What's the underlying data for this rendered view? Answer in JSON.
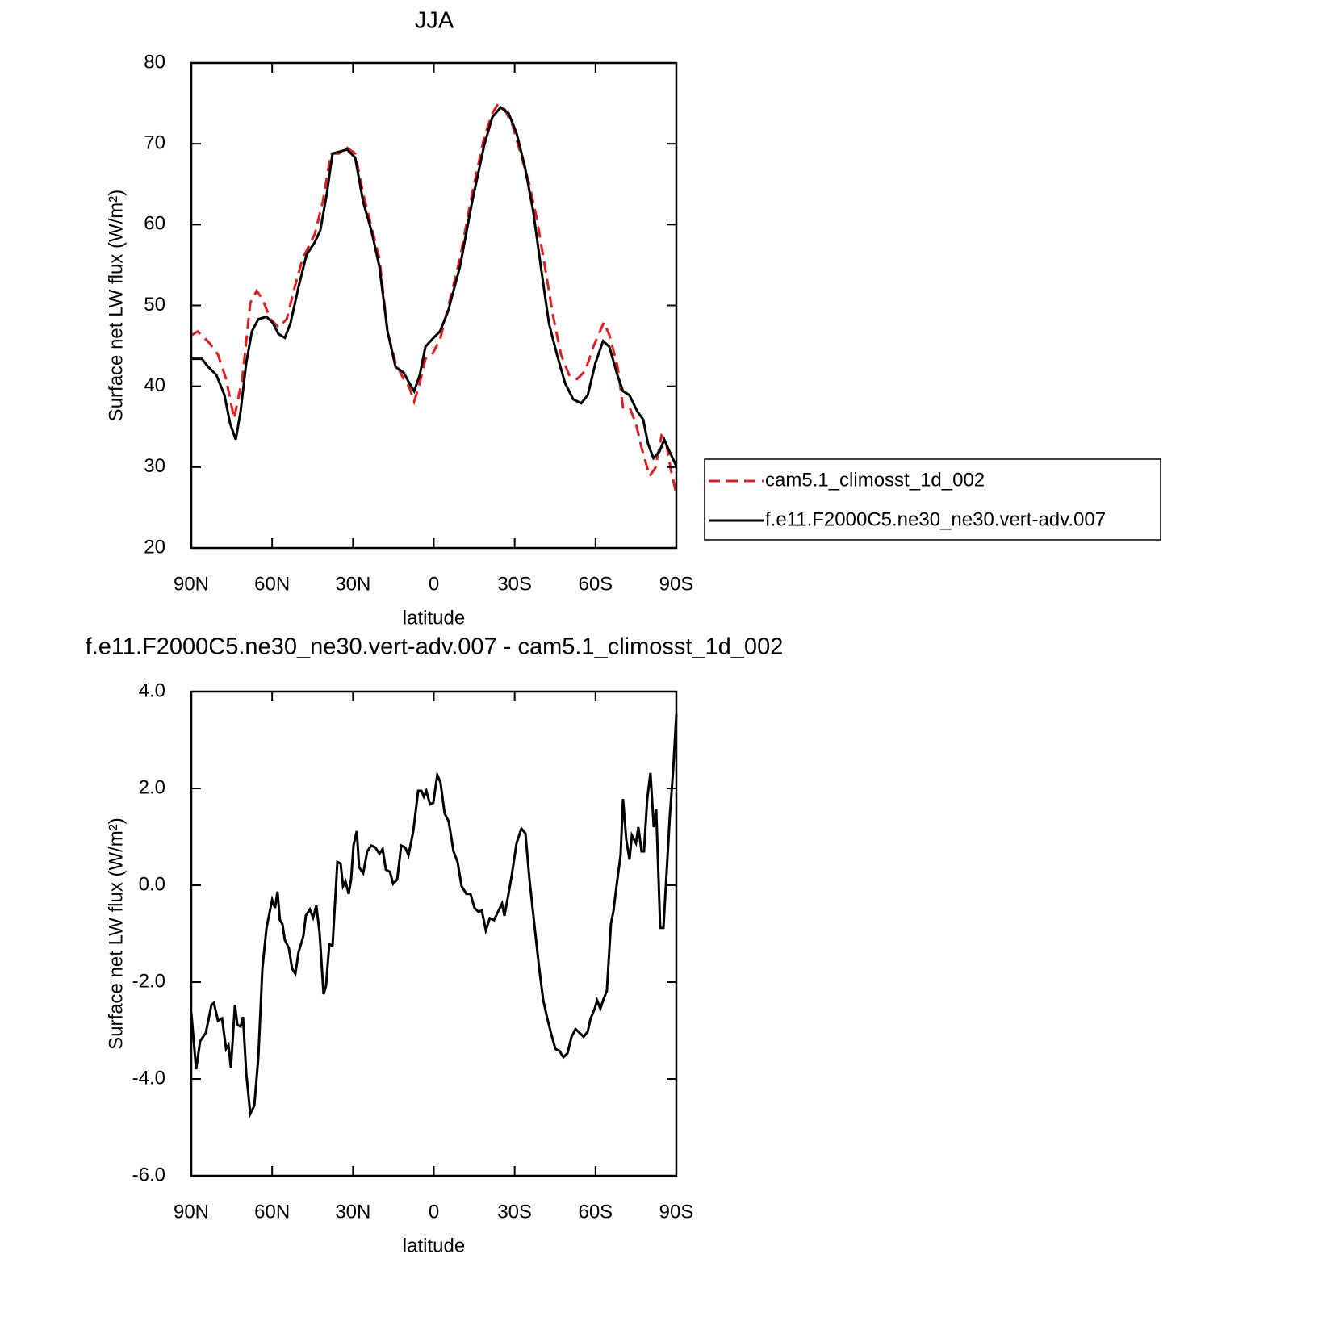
{
  "chart_data": [
    {
      "type": "line",
      "title": "JJA",
      "xlabel": "latitude",
      "ylabel": "Surface net LW flux (W/m²)",
      "xlim": [
        90,
        -90
      ],
      "xticks": [
        {
          "value": 90,
          "label": "90N"
        },
        {
          "value": 60,
          "label": "60N"
        },
        {
          "value": 30,
          "label": "30N"
        },
        0,
        {
          "value": -30,
          "label": "30S"
        },
        {
          "value": -60,
          "label": "60S"
        },
        {
          "value": -90,
          "label": "90S"
        }
      ],
      "ylim": [
        20,
        80
      ],
      "yticks": [
        20,
        30,
        40,
        50,
        60,
        70,
        80
      ],
      "legend": "right",
      "series": [
        {
          "name": "cam5.1_climosst_1d_002",
          "color": "#e41a1c",
          "dash": "dashed",
          "x": [
            90.0,
            87.6,
            83.1,
            80.1,
            77.1,
            74.1,
            71.1,
            68.1,
            65.7,
            63.6,
            60.6,
            57.6,
            54.6,
            51.6,
            48.7,
            44.2,
            41.2,
            38.2,
            35.2,
            32.2,
            29.2,
            26.2,
            23.2,
            20.2,
            17.2,
            14.2,
            11.2,
            9.1,
            7.3,
            5.2,
            3.1,
            0.7,
            -2.3,
            -5.3,
            -9.7,
            -14.2,
            -18.7,
            -21.7,
            -23.8,
            -26.2,
            -29.2,
            -32.2,
            -35.2,
            -38.2,
            -41.2,
            -44.2,
            -47.2,
            -50.2,
            -53.2,
            -56.2,
            -59.2,
            -63.1,
            -65.2,
            -68.2,
            -70.2,
            -72.6,
            -75.0,
            -77.1,
            -80.1,
            -82.2,
            -84.5,
            -86.0,
            -88.1,
            -90.0
          ],
          "values": [
            46.3,
            46.8,
            45.3,
            43.9,
            40.9,
            36.0,
            40.9,
            50.3,
            51.8,
            50.8,
            48.3,
            47.3,
            48.3,
            52.3,
            55.8,
            58.8,
            62.8,
            68.8,
            68.8,
            69.5,
            68.8,
            63.8,
            59.8,
            55.8,
            46.8,
            42.9,
            40.9,
            39.9,
            38.1,
            40.4,
            43.4,
            43.9,
            45.8,
            49.8,
            55.8,
            63.8,
            70.8,
            73.8,
            74.9,
            74.3,
            72.3,
            68.8,
            65.3,
            60.8,
            54.8,
            48.8,
            43.9,
            41.4,
            40.9,
            41.9,
            44.9,
            47.9,
            46.3,
            42.4,
            37.4,
            37.4,
            35.4,
            32.4,
            28.9,
            29.9,
            33.9,
            33.4,
            29.4,
            26.7
          ]
        },
        {
          "name": "f.e11.F2000C5.ne30_ne30.vert-adv.007",
          "color": "#000000",
          "dash": "solid",
          "x": [
            90.0,
            86.1,
            83.7,
            80.7,
            77.7,
            75.6,
            73.5,
            71.7,
            69.6,
            67.5,
            65.1,
            62.1,
            59.7,
            57.7,
            55.3,
            53.2,
            50.2,
            47.2,
            44.2,
            42.1,
            39.7,
            37.6,
            35.2,
            32.2,
            29.2,
            26.2,
            23.2,
            20.2,
            17.2,
            14.2,
            11.2,
            9.1,
            7.3,
            5.2,
            3.1,
            0.7,
            -2.3,
            -5.3,
            -9.7,
            -14.2,
            -18.7,
            -21.7,
            -24.8,
            -27.7,
            -30.7,
            -33.7,
            -36.8,
            -39.7,
            -42.7,
            -45.7,
            -48.7,
            -51.7,
            -54.7,
            -57.1,
            -60.0,
            -62.8,
            -65.1,
            -68.1,
            -70.2,
            -72.6,
            -75.5,
            -77.7,
            -79.5,
            -81.5,
            -83.7,
            -85.5,
            -87.5,
            -90.0
          ],
          "values": [
            43.4,
            43.4,
            42.4,
            41.4,
            38.9,
            35.4,
            33.4,
            36.9,
            42.9,
            46.8,
            48.3,
            48.6,
            47.8,
            46.5,
            46.0,
            47.8,
            52.3,
            56.3,
            57.8,
            59.3,
            63.8,
            68.8,
            69.0,
            69.3,
            68.3,
            62.8,
            59.3,
            54.8,
            46.8,
            42.4,
            41.7,
            40.4,
            39.4,
            41.4,
            44.9,
            45.8,
            46.8,
            49.3,
            54.8,
            62.8,
            69.8,
            73.3,
            74.5,
            73.8,
            71.3,
            67.3,
            61.8,
            54.8,
            47.8,
            43.9,
            40.4,
            38.4,
            37.9,
            38.9,
            42.9,
            45.6,
            44.9,
            41.4,
            39.4,
            38.9,
            36.9,
            35.9,
            32.9,
            31.1,
            31.9,
            33.4,
            31.9,
            30.1
          ]
        }
      ]
    },
    {
      "type": "line",
      "title": "f.e11.F2000C5.ne30_ne30.vert-adv.007 - cam5.1_climosst_1d_002",
      "xlabel": "latitude",
      "ylabel": "Surface net LW flux (W/m²)",
      "xlim": [
        90,
        -90
      ],
      "xticks": [
        {
          "value": 90,
          "label": "90N"
        },
        {
          "value": 60,
          "label": "60N"
        },
        {
          "value": 30,
          "label": "30N"
        },
        0,
        {
          "value": -30,
          "label": "30S"
        },
        {
          "value": -60,
          "label": "60S"
        },
        {
          "value": -90,
          "label": "90S"
        }
      ],
      "ylim": [
        -6,
        4
      ],
      "yticks": [
        {
          "value": -6,
          "label": "-6.0"
        },
        {
          "value": -4,
          "label": "-4.0"
        },
        {
          "value": -2,
          "label": "-2.0"
        },
        {
          "value": 0,
          "label": "0.0"
        },
        {
          "value": 2,
          "label": "2.0"
        },
        {
          "value": 4,
          "label": "4.0"
        }
      ],
      "series": [
        {
          "color": "#000000",
          "dash": "solid",
          "x": [
            90.0,
            88.2,
            86.7,
            84.6,
            82.5,
            81.6,
            80.1,
            78.6,
            77.1,
            76.2,
            75.3,
            73.8,
            72.9,
            71.7,
            70.8,
            69.6,
            68.1,
            66.6,
            65.1,
            63.6,
            62.1,
            60.0,
            58.9,
            58.0,
            57.1,
            56.2,
            55.3,
            53.8,
            52.6,
            51.4,
            50.2,
            48.4,
            47.5,
            46.0,
            44.8,
            43.6,
            42.4,
            40.9,
            40.0,
            38.8,
            37.6,
            35.8,
            34.6,
            33.7,
            32.8,
            31.6,
            30.7,
            29.8,
            28.6,
            27.7,
            26.2,
            24.7,
            23.2,
            21.7,
            20.2,
            19.0,
            17.8,
            16.3,
            15.1,
            13.6,
            12.1,
            10.6,
            9.4,
            7.6,
            5.8,
            4.6,
            3.7,
            2.8,
            1.4,
            0.2,
            -1.3,
            -2.5,
            -4.0,
            -5.5,
            -7.3,
            -8.8,
            -10.3,
            -12.1,
            -13.6,
            -15.1,
            -16.6,
            -17.8,
            -19.3,
            -20.8,
            -22.3,
            -23.8,
            -25.3,
            -26.2,
            -27.7,
            -28.9,
            -30.7,
            -32.5,
            -34.0,
            -35.5,
            -37.3,
            -39.1,
            -40.6,
            -42.1,
            -43.6,
            -45.1,
            -46.6,
            -48.1,
            -49.6,
            -51.1,
            -52.6,
            -54.1,
            -55.6,
            -57.1,
            -58.2,
            -59.7,
            -60.6,
            -61.8,
            -63.0,
            -64.2,
            -65.7,
            -66.6,
            -68.1,
            -69.3,
            -70.2,
            -71.4,
            -72.6,
            -73.5,
            -75.0,
            -75.9,
            -77.1,
            -78.0,
            -79.2,
            -80.4,
            -81.6,
            -82.5,
            -84.0,
            -85.2,
            -86.4,
            -87.6,
            -88.8,
            -90.0
          ],
          "values": [
            -2.63,
            -3.8,
            -3.22,
            -3.05,
            -2.47,
            -2.43,
            -2.8,
            -2.75,
            -3.38,
            -3.3,
            -3.77,
            -2.47,
            -2.88,
            -2.92,
            -2.72,
            -3.88,
            -4.72,
            -4.55,
            -3.55,
            -1.72,
            -0.88,
            -0.3,
            -0.47,
            -0.13,
            -0.72,
            -0.8,
            -1.13,
            -1.3,
            -1.72,
            -1.83,
            -1.38,
            -1.05,
            -0.63,
            -0.5,
            -0.67,
            -0.42,
            -0.97,
            -2.25,
            -2.08,
            -1.22,
            -1.25,
            0.48,
            0.45,
            -0.02,
            0.08,
            -0.18,
            0.12,
            0.82,
            1.12,
            0.37,
            0.25,
            0.7,
            0.82,
            0.78,
            0.65,
            0.75,
            0.32,
            0.28,
            0.03,
            0.12,
            0.82,
            0.78,
            0.62,
            1.12,
            1.95,
            1.95,
            1.83,
            1.95,
            1.67,
            1.7,
            2.28,
            2.12,
            1.48,
            1.32,
            0.7,
            0.48,
            -0.02,
            -0.18,
            -0.18,
            -0.47,
            -0.55,
            -0.52,
            -0.93,
            -0.68,
            -0.72,
            -0.55,
            -0.38,
            -0.63,
            -0.18,
            0.2,
            0.87,
            1.17,
            1.07,
            0.12,
            -0.8,
            -1.72,
            -2.38,
            -2.75,
            -3.08,
            -3.38,
            -3.42,
            -3.55,
            -3.47,
            -3.13,
            -2.97,
            -3.05,
            -3.13,
            -3.02,
            -2.75,
            -2.55,
            -2.38,
            -2.55,
            -2.35,
            -2.18,
            -0.8,
            -0.55,
            0.12,
            0.62,
            1.78,
            0.95,
            0.53,
            1.03,
            0.87,
            1.2,
            0.7,
            0.7,
            1.78,
            2.32,
            1.2,
            1.57,
            -0.88,
            -0.88,
            0.28,
            1.45,
            2.37,
            3.53
          ]
        }
      ]
    }
  ]
}
